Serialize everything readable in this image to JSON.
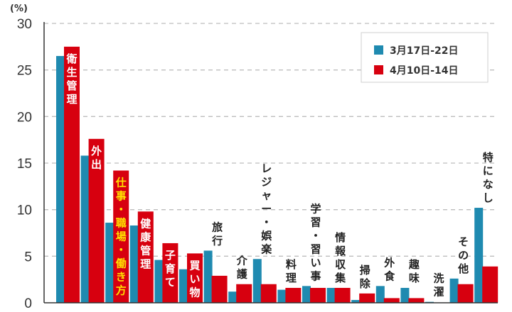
{
  "chart_data": {
    "type": "bar",
    "title": "",
    "xlabel": "",
    "ylabel": "",
    "unit_label": "(%)",
    "ylim": [
      0,
      30
    ],
    "yticks": [
      0,
      5,
      10,
      15,
      20,
      25,
      30
    ],
    "grid": true,
    "legend_position": "top-right",
    "categories": [
      "衛生管理",
      "外出",
      "仕事・職場・働き方",
      "健康管理",
      "子育て",
      "買い物",
      "旅行",
      "介護",
      "レジャー・娯楽",
      "料理",
      "学習・習い事",
      "情報収集",
      "掃除",
      "外食",
      "趣味",
      "洗濯",
      "その他",
      "特になし"
    ],
    "series": [
      {
        "name": "3月17日-22日",
        "color": "#1f8ab0",
        "values": [
          26.5,
          15.8,
          8.6,
          8.3,
          4.6,
          3.6,
          5.6,
          1.2,
          4.7,
          1.4,
          1.8,
          1.6,
          0.3,
          1.8,
          1.6,
          0.1,
          2.6,
          10.2
        ]
      },
      {
        "name": "4月10日-14日",
        "color": "#d7000f",
        "values": [
          27.5,
          17.6,
          14.2,
          9.8,
          6.4,
          5.3,
          2.9,
          2.0,
          2.0,
          1.6,
          1.6,
          1.6,
          1.0,
          0.5,
          0.5,
          0.0,
          2.0,
          3.9
        ]
      }
    ]
  }
}
